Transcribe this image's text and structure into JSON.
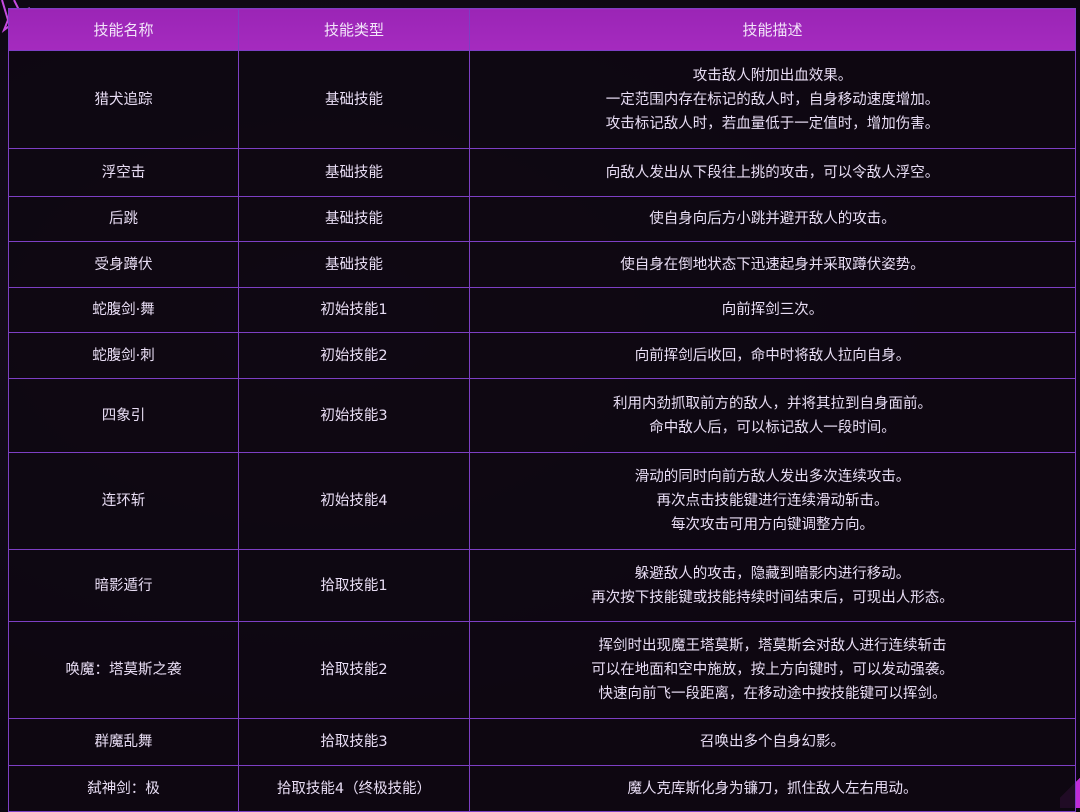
{
  "colors": {
    "header_bg": "#a52bbf",
    "border": "#7d3fc4",
    "cell_bg": "#0e0812",
    "text": "#e8ddf4"
  },
  "headers": [
    "技能名称",
    "技能类型",
    "技能描述"
  ],
  "rows": [
    {
      "name": "猎犬追踪",
      "type": "基础技能",
      "desc": [
        "攻击敌人附加出血效果。",
        "一定范围内存在标记的敌人时，自身移动速度增加。",
        "攻击标记敌人时，若血量低于一定值时，增加伤害。"
      ]
    },
    {
      "name": "浮空击",
      "type": "基础技能",
      "desc": [
        "向敌人发出从下段往上挑的攻击，可以令敌人浮空。"
      ]
    },
    {
      "name": "后跳",
      "type": "基础技能",
      "desc": [
        "使自身向后方小跳并避开敌人的攻击。"
      ]
    },
    {
      "name": "受身蹲伏",
      "type": "基础技能",
      "desc": [
        "使自身在倒地状态下迅速起身并采取蹲伏姿势。"
      ]
    },
    {
      "name": "蛇腹剑·舞",
      "type": "初始技能1",
      "desc": [
        "向前挥剑三次。"
      ]
    },
    {
      "name": "蛇腹剑·刺",
      "type": "初始技能2",
      "desc": [
        "向前挥剑后收回，命中时将敌人拉向自身。"
      ]
    },
    {
      "name": "四象引",
      "type": "初始技能3",
      "desc": [
        "利用内劲抓取前方的敌人，并将其拉到自身面前。",
        "命中敌人后，可以标记敌人一段时间。"
      ]
    },
    {
      "name": "连环斩",
      "type": "初始技能4",
      "desc": [
        "滑动的同时向前方敌人发出多次连续攻击。",
        "再次点击技能键进行连续滑动斩击。",
        "每次攻击可用方向键调整方向。"
      ]
    },
    {
      "name": "暗影遁行",
      "type": "拾取技能1",
      "desc": [
        "躲避敌人的攻击，隐藏到暗影内进行移动。",
        "再次按下技能键或技能持续时间结束后，可现出人形态。"
      ]
    },
    {
      "name": "唤魔：塔莫斯之袭",
      "type": "拾取技能2",
      "desc": [
        "挥剑时出现魔王塔莫斯，塔莫斯会对敌人进行连续斩击",
        "可以在地面和空中施放，按上方向键时，可以发动强袭。",
        "快速向前飞一段距离，在移动途中按技能键可以挥剑。"
      ]
    },
    {
      "name": "群魔乱舞",
      "type": "拾取技能3",
      "desc": [
        "召唤出多个自身幻影。"
      ]
    },
    {
      "name": "弑神剑：极",
      "type": "拾取技能4（终极技能）",
      "desc": [
        "魔人克库斯化身为镰刀，抓住敌人左右甩动。"
      ]
    }
  ]
}
